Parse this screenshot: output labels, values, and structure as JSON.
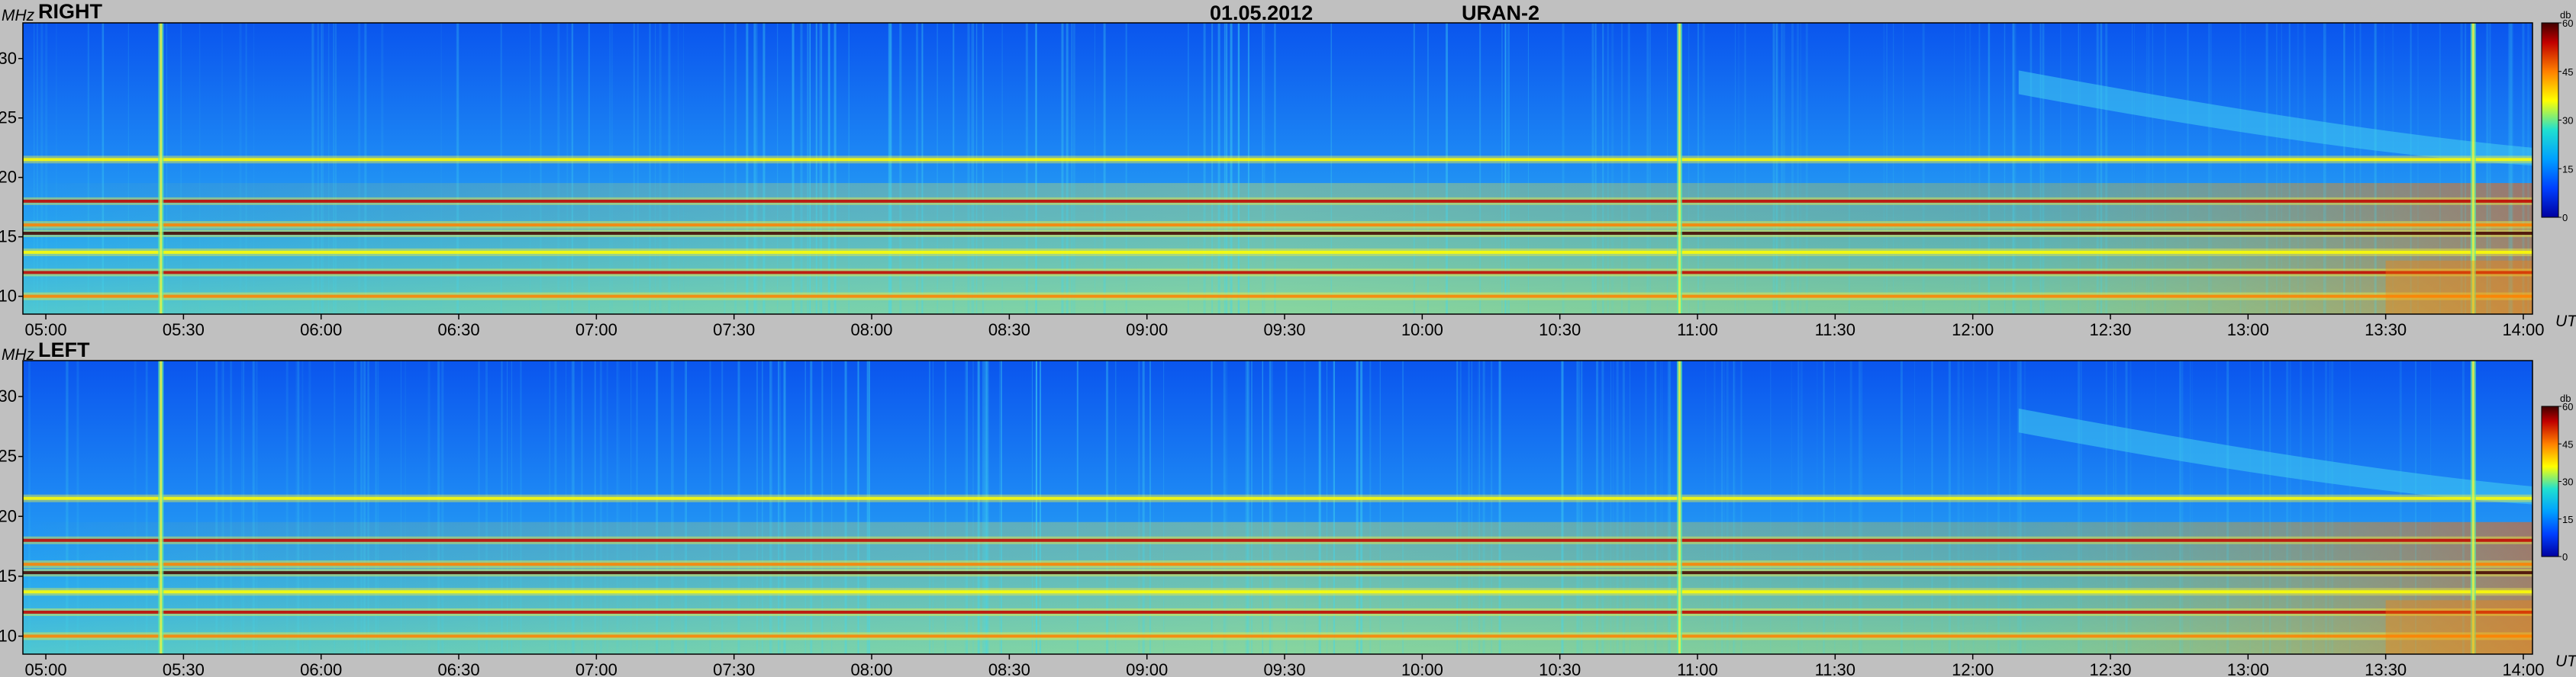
{
  "header": {
    "date": "01.05.2012",
    "instrument": "URAN-2"
  },
  "chart_data": [
    {
      "type": "heatmap",
      "panel": "RIGHT",
      "title": "RIGHT",
      "ylabel": "MHz",
      "xlabel": "UT",
      "xlim": [
        "04:55",
        "14:02"
      ],
      "ylim": [
        8.5,
        33
      ],
      "yticks": [
        10,
        15,
        20,
        25,
        30
      ],
      "xticks": [
        "05:00",
        "05:30",
        "06:00",
        "06:30",
        "07:00",
        "07:30",
        "08:00",
        "08:30",
        "09:00",
        "09:30",
        "10:00",
        "10:30",
        "11:00",
        "11:30",
        "12:00",
        "12:30",
        "13:00",
        "13:30",
        "14:00"
      ],
      "colorbar": {
        "unit": "db",
        "min": 0,
        "max": 60,
        "ticks": [
          0,
          15,
          30,
          45,
          60
        ]
      },
      "features": {
        "horizontal_bands_mhz": [
          {
            "freq": 18.0,
            "level_db": 50
          },
          {
            "freq": 16.0,
            "level_db": 40
          },
          {
            "freq": 15.3,
            "level_db": 55
          },
          {
            "freq": 13.7,
            "level_db": 35
          },
          {
            "freq": 12.0,
            "level_db": 50
          },
          {
            "freq": 10.0,
            "level_db": 45
          },
          {
            "freq": 21.5,
            "level_db": 30
          }
        ],
        "vertical_bursts_ut": [
          "05:25",
          "10:56",
          "13:49"
        ]
      }
    },
    {
      "type": "heatmap",
      "panel": "LEFT",
      "title": "LEFT",
      "ylabel": "MHz",
      "xlabel": "UT",
      "xlim": [
        "04:55",
        "14:02"
      ],
      "ylim": [
        8.5,
        33
      ],
      "yticks": [
        10,
        15,
        20,
        25,
        30
      ],
      "xticks": [
        "05:00",
        "05:30",
        "06:00",
        "06:30",
        "07:00",
        "07:30",
        "08:00",
        "08:30",
        "09:00",
        "09:30",
        "10:00",
        "10:30",
        "11:00",
        "11:30",
        "12:00",
        "12:30",
        "13:00",
        "13:30",
        "14:00"
      ],
      "colorbar": {
        "unit": "db",
        "min": 0,
        "max": 60,
        "ticks": [
          0,
          15,
          30,
          45,
          60
        ]
      },
      "features": {
        "horizontal_bands_mhz": [
          {
            "freq": 18.0,
            "level_db": 50
          },
          {
            "freq": 16.0,
            "level_db": 40
          },
          {
            "freq": 15.3,
            "level_db": 55
          },
          {
            "freq": 13.7,
            "level_db": 35
          },
          {
            "freq": 12.0,
            "level_db": 50
          },
          {
            "freq": 10.0,
            "level_db": 45
          },
          {
            "freq": 21.5,
            "level_db": 30
          }
        ],
        "vertical_bursts_ut": [
          "05:25",
          "10:56",
          "13:49"
        ]
      }
    }
  ],
  "colors": {
    "background": "#c0c0c0",
    "colormap": [
      "#0000a0",
      "#0040ff",
      "#00a0ff",
      "#20e0d0",
      "#ffff00",
      "#ff8000",
      "#c00000",
      "#400000"
    ]
  }
}
